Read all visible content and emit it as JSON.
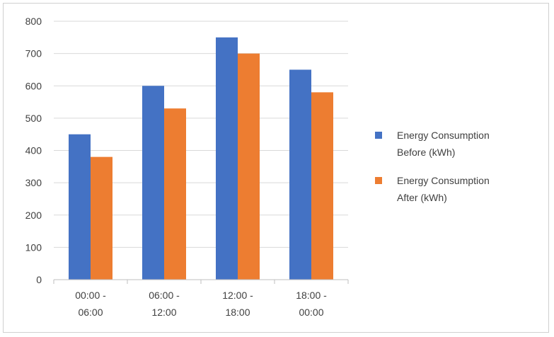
{
  "chart_data": {
    "type": "bar",
    "title": "",
    "xlabel": "",
    "ylabel": "",
    "categories": [
      [
        "00:00 -",
        "06:00"
      ],
      [
        "06:00 -",
        "12:00"
      ],
      [
        "12:00 -",
        "18:00"
      ],
      [
        "18:00 -",
        "00:00"
      ]
    ],
    "series": [
      {
        "name": [
          "Energy Consumption",
          "Before (kWh)"
        ],
        "color": "#4472C4",
        "values": [
          450,
          600,
          750,
          650
        ]
      },
      {
        "name": [
          "Energy Consumption",
          "After (kWh)"
        ],
        "color": "#ED7D31",
        "values": [
          380,
          530,
          700,
          580
        ]
      }
    ],
    "ylim": [
      0,
      800
    ],
    "yticks": [
      0,
      100,
      200,
      300,
      400,
      500,
      600,
      700,
      800
    ],
    "grid": true,
    "legend": "right"
  }
}
